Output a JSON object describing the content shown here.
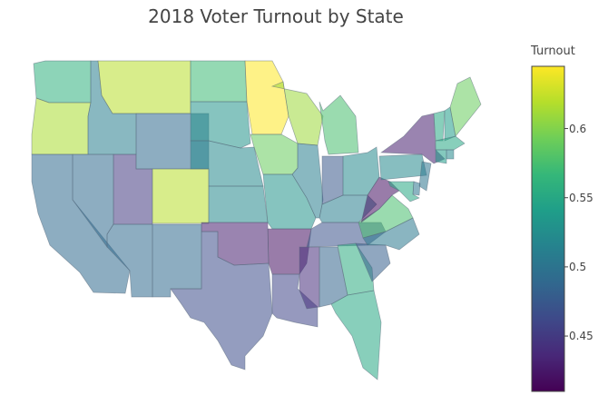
{
  "chart_data": {
    "type": "choropleth",
    "title": "2018 Voter Turnout by State",
    "colorbar": {
      "title": "Turnout",
      "range": [
        0.41,
        0.645
      ],
      "ticks": [
        0.45,
        0.5,
        0.55,
        0.6
      ],
      "tick_labels": [
        "0.45",
        "0.5",
        "0.55",
        "0.6"
      ],
      "colorscale": "Viridis",
      "colors": [
        "#440154",
        "#482878",
        "#3e4989",
        "#31688e",
        "#26828e",
        "#1f9e89",
        "#35b779",
        "#6ece58",
        "#b5de2b",
        "#fde725"
      ]
    },
    "states": [
      {
        "code": "WA",
        "value": 0.56
      },
      {
        "code": "OR",
        "value": 0.615
      },
      {
        "code": "CA",
        "value": 0.49
      },
      {
        "code": "NV",
        "value": 0.49
      },
      {
        "code": "ID",
        "value": 0.51
      },
      {
        "code": "MT",
        "value": 0.62
      },
      {
        "code": "WY",
        "value": 0.49
      },
      {
        "code": "UT",
        "value": 0.45
      },
      {
        "code": "CO",
        "value": 0.62
      },
      {
        "code": "AZ",
        "value": 0.49
      },
      {
        "code": "NM",
        "value": 0.49
      },
      {
        "code": "ND",
        "value": 0.57
      },
      {
        "code": "SD",
        "value": 0.53
      },
      {
        "code": "NE",
        "value": 0.52
      },
      {
        "code": "KS",
        "value": 0.52
      },
      {
        "code": "OK",
        "value": 0.43
      },
      {
        "code": "TX",
        "value": 0.465
      },
      {
        "code": "MN",
        "value": 0.645
      },
      {
        "code": "IA",
        "value": 0.59
      },
      {
        "code": "MO",
        "value": 0.53
      },
      {
        "code": "AR",
        "value": 0.42
      },
      {
        "code": "LA",
        "value": 0.46
      },
      {
        "code": "WI",
        "value": 0.61
      },
      {
        "code": "IL",
        "value": 0.51
      },
      {
        "code": "MI",
        "value": 0.575
      },
      {
        "code": "IN",
        "value": 0.475
      },
      {
        "code": "OH",
        "value": 0.52
      },
      {
        "code": "KY",
        "value": 0.51
      },
      {
        "code": "TN",
        "value": 0.47
      },
      {
        "code": "MS",
        "value": 0.44
      },
      {
        "code": "AL",
        "value": 0.485
      },
      {
        "code": "GA",
        "value": 0.555
      },
      {
        "code": "FL",
        "value": 0.55
      },
      {
        "code": "SC",
        "value": 0.48
      },
      {
        "code": "NC",
        "value": 0.505
      },
      {
        "code": "VA",
        "value": 0.575
      },
      {
        "code": "WV",
        "value": 0.42
      },
      {
        "code": "PA",
        "value": 0.52
      },
      {
        "code": "NY",
        "value": 0.43
      },
      {
        "code": "VT",
        "value": 0.55
      },
      {
        "code": "NH",
        "value": 0.54
      },
      {
        "code": "ME",
        "value": 0.59
      },
      {
        "code": "MA",
        "value": 0.55
      },
      {
        "code": "CT",
        "value": 0.54
      },
      {
        "code": "RI",
        "value": 0.52
      },
      {
        "code": "NJ",
        "value": 0.5
      },
      {
        "code": "DE",
        "value": 0.5
      },
      {
        "code": "MD",
        "value": 0.55
      }
    ]
  }
}
